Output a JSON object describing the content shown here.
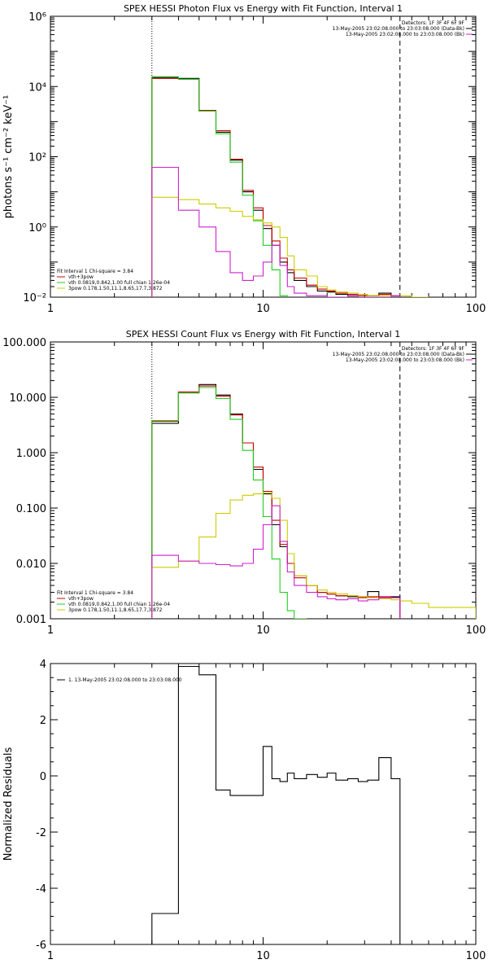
{
  "chart_data": [
    {
      "type": "line",
      "title": "SPEX HESSI Photon Flux vs Energy with Fit Function, Interval 1",
      "xlabel": "",
      "ylabel": "photons s⁻¹ cm⁻² keV⁻¹",
      "xlim": [
        1,
        100
      ],
      "ylim": [
        0.01,
        1000000
      ],
      "xscale": "log",
      "yscale": "log",
      "xticks": [
        1,
        10,
        100
      ],
      "xtick_labels": [
        "1",
        "10",
        "100"
      ],
      "yticks": [
        0.01,
        1,
        100,
        10000,
        1000000
      ],
      "ytick_labels": [
        "10⁻²",
        "10⁰",
        "10²",
        "10⁴",
        "10⁶"
      ],
      "vlines": [
        {
          "x": 3,
          "style": "dotted"
        },
        {
          "x": 44,
          "style": "dashed"
        }
      ],
      "legend_top": [
        "Detectors: 1F 3F 4F 6F 9F",
        "13-May-2005 23:02:08.000 to 23:03:08.000 (Data-Bk)",
        "13-May-2005 23:02:08.000 to 23:03:08.000 (Bk)"
      ],
      "legend_top_colors": [
        "",
        "#000000",
        "#cc22cc"
      ],
      "legend_bottom": [
        "Fit Interval 1    Chi-square = 3.84",
        "vth+3pow",
        "vth 0.0819,0.842,1.00  full chian 1.26e-04",
        "3pow 0.178,1.50,11.1,8.65,17.7,3.872"
      ],
      "legend_bottom_colors": [
        "",
        "#cc0000",
        "#22cc22",
        "#cccc00"
      ],
      "edges": [
        3,
        4,
        5,
        6,
        7,
        8,
        9,
        10,
        11,
        12,
        13,
        14,
        16,
        18,
        20,
        22,
        25,
        28,
        31,
        35,
        40,
        44,
        50,
        60
      ],
      "series": [
        {
          "name": "Data-Bk",
          "color": "#000000",
          "values": [
            18000,
            17000,
            2000,
            500,
            80,
            10,
            3,
            0.9,
            0.3,
            0.1,
            0.05,
            0.03,
            0.02,
            0.015,
            0.014,
            0.012,
            0.011,
            0.012,
            0.011,
            0.013,
            0.011,
            null,
            null
          ]
        },
        {
          "name": "vth+3pow",
          "color": "#cc0000",
          "values": [
            17000,
            16000,
            2100,
            550,
            85,
            11,
            3.5,
            1.1,
            0.4,
            0.13,
            0.06,
            0.035,
            0.022,
            0.017,
            0.015,
            0.013,
            0.012,
            0.011,
            0.011,
            0.012,
            0.011,
            null,
            null
          ]
        },
        {
          "name": "vth",
          "color": "#22cc22",
          "values": [
            19000,
            16000,
            2000,
            450,
            70,
            8,
            1.5,
            0.3,
            0.06,
            0.011,
            null,
            null,
            null,
            null,
            null,
            null,
            null,
            null,
            null,
            null,
            null,
            null,
            null
          ]
        },
        {
          "name": "3pow",
          "color": "#cccc00",
          "values": [
            7,
            6,
            4.5,
            3.5,
            2.8,
            2,
            1.6,
            1.3,
            1,
            0.5,
            0.15,
            0.06,
            0.04,
            0.02,
            0.016,
            0.014,
            0.013,
            0.012,
            0.011,
            0.011,
            0.011,
            0.011,
            0.01
          ]
        },
        {
          "name": "Bk",
          "color": "#cc22cc",
          "values": [
            50,
            3,
            1,
            0.2,
            0.05,
            0.03,
            0.04,
            0.1,
            0.3,
            0.08,
            0.02,
            0.013,
            0.011,
            0.011,
            0.01,
            0.01,
            0.011,
            0.01,
            0.01,
            0.01,
            0.011,
            null,
            null
          ]
        }
      ]
    },
    {
      "type": "line",
      "title": "SPEX HESSI Count Flux vs Energy with Fit Function, Interval 1",
      "xlabel": "",
      "ylabel": "",
      "xlim": [
        1,
        100
      ],
      "ylim": [
        0.001,
        100
      ],
      "xscale": "log",
      "yscale": "log",
      "xticks": [
        1,
        10,
        100
      ],
      "xtick_labels": [
        "1",
        "10",
        "100"
      ],
      "yticks": [
        0.001,
        0.01,
        0.1,
        1,
        10,
        100
      ],
      "ytick_labels": [
        "0.001",
        "0.010",
        "0.100",
        "1.000",
        "10.000",
        "100.000"
      ],
      "vlines": [
        {
          "x": 3,
          "style": "dotted"
        },
        {
          "x": 44,
          "style": "dashed"
        }
      ],
      "legend_top": [
        "Detectors: 1F 3F 4F 6F 9F",
        "13-May-2005 23:02:08.000 to 23:03:08.000 (Data-Bk)",
        "13-May-2005 23:02:08.000 to 23:03:08.000 (Bk)"
      ],
      "legend_top_colors": [
        "",
        "#000000",
        "#cc22cc"
      ],
      "legend_bottom": [
        "Fit Interval 1    Chi-square = 3.84",
        "vth+3pow",
        "vth 0.0819,0.842,1.00  full chian 1.26e-04",
        "3pow 0.178,1.50,11.1,8.65,17.7,3.872"
      ],
      "legend_bottom_colors": [
        "",
        "#cc0000",
        "#22cc22",
        "#cccc00"
      ],
      "edges": [
        3,
        4,
        5,
        6,
        7,
        8,
        9,
        10,
        11,
        12,
        13,
        14,
        16,
        18,
        20,
        22,
        25,
        28,
        31,
        35,
        40,
        44,
        50,
        60,
        100
      ],
      "series": [
        {
          "name": "Data-Bk",
          "color": "#000000",
          "values": [
            3.4,
            12,
            17,
            11,
            5,
            1.5,
            0.5,
            0.18,
            0.05,
            0.02,
            0.01,
            0.006,
            0.004,
            0.003,
            0.0028,
            0.0026,
            0.0025,
            0.0025,
            0.0031,
            0.0024,
            0.0025,
            null,
            null,
            null
          ]
        },
        {
          "name": "vth+3pow",
          "color": "#cc0000",
          "values": [
            3.7,
            12.5,
            16,
            10.5,
            4.8,
            1.5,
            0.55,
            0.2,
            0.06,
            0.022,
            0.01,
            0.0055,
            0.004,
            0.003,
            0.0028,
            0.0026,
            0.0026,
            0.0024,
            0.0025,
            0.0025,
            0.0024,
            null,
            null,
            null
          ]
        },
        {
          "name": "vth",
          "color": "#22cc22",
          "values": [
            3.8,
            12,
            15,
            9.5,
            4,
            1.1,
            0.32,
            0.07,
            0.012,
            0.003,
            0.0014,
            0.001,
            null,
            null,
            null,
            null,
            null,
            null,
            null,
            null,
            null,
            null,
            null,
            null
          ]
        },
        {
          "name": "3pow",
          "color": "#cccc00",
          "values": [
            0.0085,
            0.011,
            0.03,
            0.08,
            0.14,
            0.17,
            0.18,
            0.19,
            0.15,
            0.06,
            0.015,
            0.006,
            0.004,
            0.0033,
            0.003,
            0.0028,
            0.0026,
            0.0025,
            0.0024,
            0.0023,
            0.0022,
            0.0021,
            0.0019,
            0.0016
          ]
        },
        {
          "name": "Bk",
          "color": "#cc22cc",
          "values": [
            0.014,
            0.011,
            0.01,
            0.0095,
            0.009,
            0.01,
            0.018,
            0.05,
            0.11,
            0.025,
            0.007,
            0.004,
            0.003,
            0.0025,
            0.0023,
            0.0022,
            0.0023,
            0.0021,
            0.0022,
            0.0024,
            0.0024,
            null,
            null,
            null
          ]
        }
      ]
    },
    {
      "type": "line",
      "title": "",
      "xlabel": "",
      "ylabel": "Normalized Residuals",
      "xlim": [
        1,
        100
      ],
      "ylim": [
        -6,
        4
      ],
      "xscale": "log",
      "yscale": "linear",
      "xticks": [
        1,
        10,
        100
      ],
      "xtick_labels": [
        "1",
        "10",
        "100"
      ],
      "yticks": [
        -6,
        -4,
        -2,
        0,
        2,
        4
      ],
      "ytick_labels": [
        "-6",
        "-4",
        "-2",
        "0",
        "2",
        "4"
      ],
      "legend": [
        "1. 13-May-2005 23:02:08.000 to 23:03:08.000"
      ],
      "edges": [
        3,
        4,
        5,
        6,
        7,
        8,
        9,
        10,
        11,
        12,
        13,
        14,
        16,
        18,
        20,
        22,
        25,
        28,
        31,
        35,
        40,
        44
      ],
      "series": [
        {
          "name": "",
          "color": "#000000",
          "values": [
            -4.9,
            3.9,
            3.6,
            -0.5,
            -0.7,
            -0.7,
            -0.7,
            1.05,
            -0.1,
            -0.2,
            0.1,
            -0.1,
            0.05,
            -0.05,
            0.1,
            -0.15,
            -0.1,
            -0.2,
            -0.15,
            0.65,
            -0.1
          ]
        }
      ]
    }
  ]
}
